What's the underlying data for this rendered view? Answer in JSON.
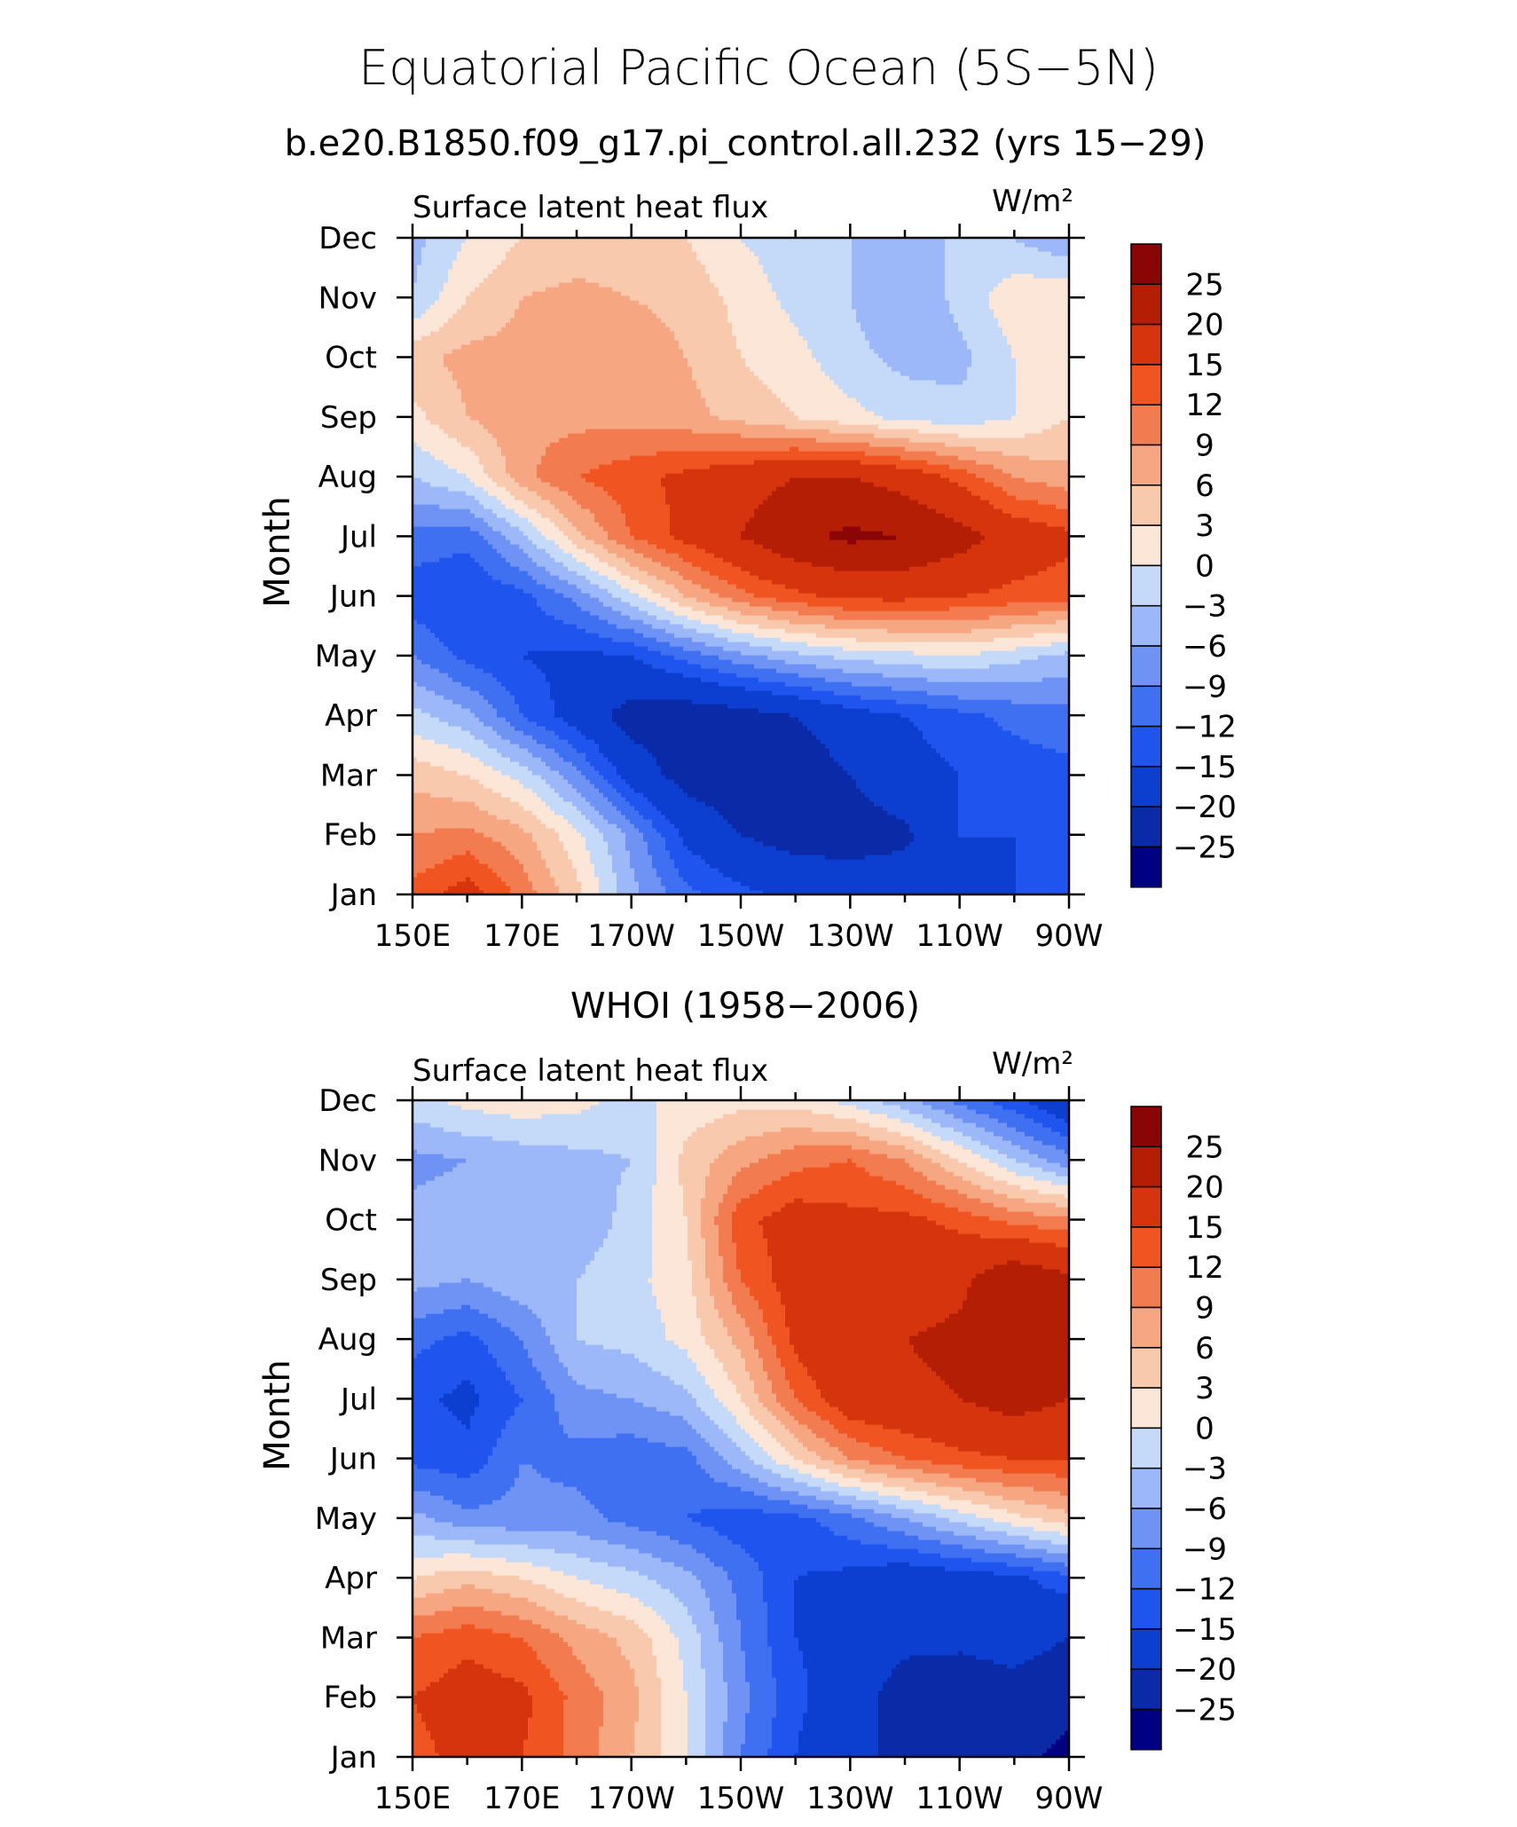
{
  "figure": {
    "title": "Equatorial Pacific Ocean (5S−5N)",
    "subtitle": "b.e20.B1850.f09_g17.pi_control.all.232 (yrs 15−29)"
  },
  "colorbar": {
    "labels": [
      "25",
      "20",
      "15",
      "12",
      "9",
      "6",
      "3",
      "0",
      "−3",
      "−6",
      "−9",
      "−12",
      "−15",
      "−20",
      "−25"
    ],
    "levels": [
      -25,
      -20,
      -15,
      -12,
      -9,
      -6,
      -3,
      0,
      3,
      6,
      9,
      12,
      15,
      20,
      25
    ],
    "colors": [
      "#000083",
      "#0a2aa8",
      "#0c3fcf",
      "#1f55ee",
      "#3f70f2",
      "#6f93f5",
      "#9cb8f8",
      "#c5daf9",
      "#fbe6d7",
      "#f9c9ad",
      "#f6a681",
      "#f27c4f",
      "#f05521",
      "#d6340c",
      "#b31e05",
      "#8a0606"
    ]
  },
  "chart_data": [
    {
      "type": "heatmap",
      "title": "b.e20.B1850.f09_g17.pi_control.all.232 (yrs 15−29)",
      "left_label": "Surface latent heat flux",
      "right_label": "W/m²",
      "xlabel": "",
      "ylabel": "Month",
      "x_ticklabels": [
        "150E",
        "170E",
        "170W",
        "150W",
        "130W",
        "110W",
        "90W"
      ],
      "y_ticklabels": [
        "Jan",
        "Feb",
        "Mar",
        "Apr",
        "May",
        "Jun",
        "Jul",
        "Aug",
        "Sep",
        "Oct",
        "Nov",
        "Dec"
      ],
      "x_lon": [
        150,
        160,
        170,
        180,
        190,
        200,
        210,
        220,
        230,
        240,
        250,
        260,
        270
      ],
      "y_month": [
        1,
        2,
        3,
        4,
        5,
        6,
        7,
        8,
        9,
        10,
        11,
        12
      ],
      "z": [
        [
          13,
          17,
          11,
          4,
          -5,
          -11,
          -14,
          -16,
          -17,
          -17,
          -17,
          -15,
          -14
        ],
        [
          9,
          10,
          7,
          1,
          -7,
          -16,
          -20,
          -22,
          -22,
          -21,
          -15,
          -15,
          -15
        ],
        [
          5,
          3,
          -1,
          -8,
          -17,
          -22,
          -23,
          -23,
          -20,
          -17,
          -15,
          -14,
          -13
        ],
        [
          -2,
          -5,
          -12,
          -17,
          -22,
          -23,
          -22,
          -20,
          -17,
          -15,
          -13,
          -11,
          -10
        ],
        [
          -9,
          -13,
          -15,
          -16,
          -15,
          -11,
          -7,
          -4,
          -2,
          -1,
          0,
          -2,
          -4
        ],
        [
          -14,
          -15,
          -13,
          -8,
          -1,
          6,
          11,
          14,
          16,
          16,
          15,
          14,
          13
        ],
        [
          -10,
          -11,
          -4,
          5,
          12,
          16,
          20,
          24,
          26,
          25,
          22,
          18,
          16
        ],
        [
          -3,
          0,
          8,
          12,
          14,
          16,
          18,
          20,
          20,
          18,
          14,
          9,
          7
        ],
        [
          2,
          6,
          8,
          8,
          8,
          7,
          5,
          3,
          1,
          -1,
          -2,
          0,
          3
        ],
        [
          5,
          7,
          7,
          8,
          8,
          6,
          3,
          1,
          -2,
          -4,
          -4,
          0,
          3
        ],
        [
          -3,
          3,
          6,
          7,
          6,
          5,
          2,
          -1,
          -3,
          -6,
          -2,
          2,
          3
        ],
        [
          -4,
          0,
          3,
          4,
          4,
          3,
          0,
          -2,
          -3,
          -3,
          -3,
          -3,
          -6
        ]
      ],
      "levels": [
        -25,
        -20,
        -15,
        -12,
        -9,
        -6,
        -3,
        0,
        3,
        6,
        9,
        12,
        15,
        20,
        25
      ],
      "grid": false,
      "colorbar_position": "right"
    },
    {
      "type": "heatmap",
      "title": "WHOI (1958−2006)",
      "left_label": "Surface latent heat flux",
      "right_label": "W/m²",
      "xlabel": "",
      "ylabel": "Month",
      "x_ticklabels": [
        "150E",
        "170E",
        "170W",
        "150W",
        "130W",
        "110W",
        "90W"
      ],
      "y_ticklabels": [
        "Jan",
        "Feb",
        "Mar",
        "Apr",
        "May",
        "Jun",
        "Jul",
        "Aug",
        "Sep",
        "Oct",
        "Nov",
        "Dec"
      ],
      "x_lon": [
        150,
        160,
        170,
        180,
        190,
        200,
        210,
        220,
        230,
        240,
        250,
        260,
        270
      ],
      "y_month": [
        1,
        2,
        3,
        4,
        5,
        6,
        7,
        8,
        9,
        10,
        11,
        12
      ],
      "z": [
        [
          14,
          16,
          15,
          11,
          6,
          0,
          -9,
          -15,
          -20,
          -20,
          -23,
          -24,
          -26
        ],
        [
          15,
          17,
          16,
          11,
          7,
          0,
          -8,
          -14,
          -18,
          -22,
          -23,
          -22,
          -24
        ],
        [
          12,
          14,
          12,
          8,
          5,
          -1,
          -9,
          -15,
          -17,
          -19,
          -19,
          -18,
          -20
        ],
        [
          3,
          5,
          3,
          0,
          -2,
          -5,
          -10,
          -15,
          -16,
          -18,
          -17,
          -16,
          -13
        ],
        [
          -5,
          -8,
          -8,
          -8,
          -10,
          -12,
          -14,
          -13,
          -10,
          -6,
          -2,
          2,
          5
        ],
        [
          -13,
          -14,
          -9,
          -10,
          -11,
          -10,
          -4,
          3,
          9,
          12,
          14,
          15,
          15
        ],
        [
          -14,
          -16,
          -12,
          -7,
          -6,
          -4,
          3,
          12,
          18,
          19,
          20,
          22,
          20
        ],
        [
          -11,
          -13,
          -9,
          -3,
          -2,
          1,
          7,
          16,
          20,
          20,
          21,
          22,
          21
        ],
        [
          -5,
          -6,
          -4,
          -3,
          -1,
          2,
          12,
          17,
          20,
          17,
          19,
          24,
          21
        ],
        [
          -5,
          -4,
          -3,
          -5,
          -2,
          3,
          14,
          17,
          16,
          16,
          14,
          11,
          10
        ],
        [
          -7,
          -6,
          -5,
          -4,
          -3,
          4,
          8,
          11,
          12,
          9,
          3,
          -3,
          -8
        ],
        [
          -1,
          1,
          2,
          1,
          -1,
          1,
          2,
          2,
          -1,
          -5,
          -10,
          -14,
          -19
        ]
      ],
      "levels": [
        -25,
        -20,
        -15,
        -12,
        -9,
        -6,
        -3,
        0,
        3,
        6,
        9,
        12,
        15,
        20,
        25
      ],
      "grid": false,
      "colorbar_position": "right"
    }
  ]
}
